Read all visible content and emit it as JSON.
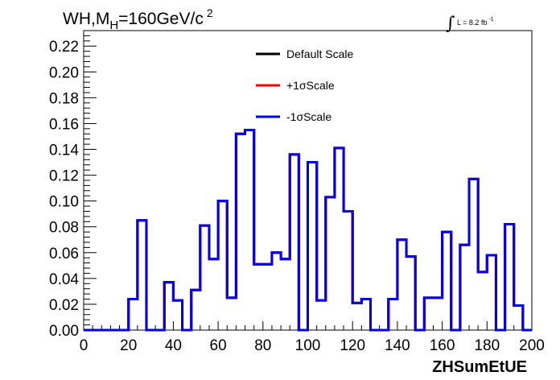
{
  "chart_data": {
    "type": "line",
    "title": {
      "main": "WH,M",
      "sub": "H",
      "rest": "=160GeV/c",
      "sup": "2"
    },
    "lumi": {
      "symbol": "∫",
      "text": "L = 8.2 fb",
      "sup": "-1"
    },
    "xlabel": "ZHSumEtUE",
    "ylabel": "",
    "xlim": [
      0,
      200
    ],
    "ylim": [
      0,
      0.232
    ],
    "x_ticks": [
      "0",
      "20",
      "40",
      "60",
      "80",
      "100",
      "120",
      "140",
      "160",
      "180",
      "200"
    ],
    "y_ticks": [
      "0.00",
      "0.02",
      "0.04",
      "0.06",
      "0.08",
      "0.10",
      "0.12",
      "0.14",
      "0.16",
      "0.18",
      "0.20",
      "0.22"
    ],
    "bin_edges": [
      0,
      4,
      8,
      12,
      16,
      20,
      24,
      28,
      32,
      36,
      40,
      44,
      48,
      52,
      56,
      60,
      64,
      68,
      72,
      74,
      76,
      80,
      84,
      88,
      92,
      96,
      100,
      104,
      108,
      112,
      116,
      120,
      124,
      128,
      132,
      136,
      140,
      144,
      148,
      152,
      156,
      160,
      164,
      168,
      172,
      176,
      180,
      184,
      188,
      192,
      196,
      200
    ],
    "series": [
      {
        "name": "Default Scale",
        "color": "#000000",
        "values": [
          0,
          0,
          0,
          0,
          0,
          0.024,
          0.085,
          0,
          0,
          0.037,
          0.023,
          0,
          0.031,
          0.081,
          0.055,
          0.1,
          0.025,
          0.152,
          0.155,
          0.155,
          0.051,
          0.051,
          0.06,
          0.055,
          0.136,
          0,
          0.13,
          0.023,
          0.103,
          0.141,
          0.092,
          0.021,
          0.024,
          0,
          0,
          0.024,
          0.07,
          0.057,
          0,
          0.025,
          0.025,
          0.076,
          0,
          0.066,
          0.117,
          0.045,
          0.058,
          0,
          0.082,
          0.019,
          0
        ]
      },
      {
        "name": "+1σScale",
        "color": "#ff0000",
        "values": [
          0,
          0,
          0,
          0,
          0,
          0.024,
          0.085,
          0,
          0,
          0.037,
          0.023,
          0,
          0.031,
          0.081,
          0.055,
          0.1,
          0.025,
          0.152,
          0.155,
          0.155,
          0.051,
          0.051,
          0.06,
          0.055,
          0.136,
          0,
          0.13,
          0.023,
          0.103,
          0.141,
          0.092,
          0.021,
          0.024,
          0,
          0,
          0.024,
          0.07,
          0.057,
          0,
          0.025,
          0.025,
          0.076,
          0,
          0.066,
          0.117,
          0.045,
          0.058,
          0,
          0.082,
          0.019,
          0
        ]
      },
      {
        "name": "-1σScale",
        "color": "#0000ee",
        "values": [
          0,
          0,
          0,
          0,
          0,
          0.024,
          0.085,
          0,
          0,
          0.037,
          0.023,
          0,
          0.031,
          0.081,
          0.055,
          0.1,
          0.025,
          0.152,
          0.155,
          0.155,
          0.051,
          0.051,
          0.06,
          0.055,
          0.136,
          0,
          0.13,
          0.023,
          0.103,
          0.141,
          0.092,
          0.021,
          0.024,
          0,
          0,
          0.024,
          0.07,
          0.057,
          0,
          0.025,
          0.025,
          0.076,
          0,
          0.066,
          0.117,
          0.045,
          0.058,
          0,
          0.082,
          0.019,
          0
        ]
      }
    ],
    "legend_position": "top-center",
    "grid": false
  }
}
